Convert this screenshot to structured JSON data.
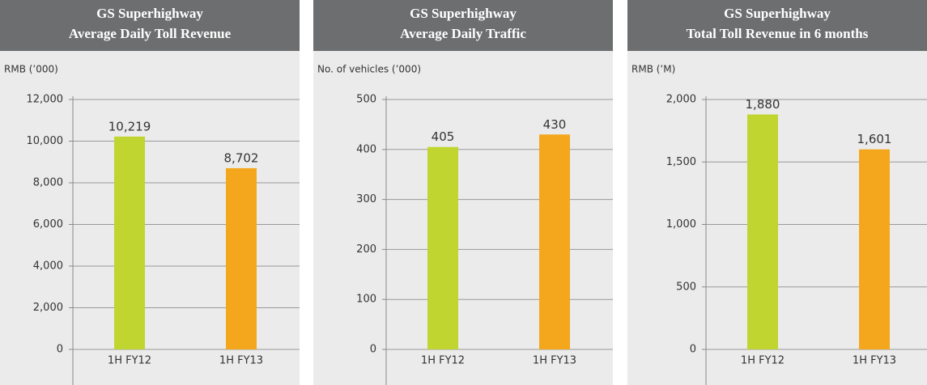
{
  "chart_data": [
    {
      "type": "bar",
      "title": "GS Superhighway",
      "subtitle": "Average Daily Toll Revenue",
      "y_label": "RMB (’000)",
      "categories": [
        "1H FY12",
        "1H FY13"
      ],
      "values": [
        10219,
        8702
      ],
      "value_labels": [
        "10,219",
        "8,702"
      ],
      "colors": [
        "#c0d530",
        "#f4a71d"
      ],
      "ylim": [
        0,
        12000
      ],
      "yticks": [
        0,
        {
          "value": 2000,
          "label": "2,000"
        },
        {
          "value": 4000,
          "label": "4,000"
        },
        {
          "value": 6000,
          "label": "6,000"
        },
        {
          "value": 8000,
          "label": "8,000"
        },
        {
          "value": 10000,
          "label": "10,000"
        },
        {
          "value": 12000,
          "label": "12,000"
        }
      ],
      "grid": true
    },
    {
      "type": "bar",
      "title": "GS Superhighway",
      "subtitle": "Average Daily Traffic",
      "y_label": "No. of vehicles (’000)",
      "categories": [
        "1H FY12",
        "1H FY13"
      ],
      "values": [
        405,
        430
      ],
      "colors": [
        "#c0d530",
        "#f4a71d"
      ],
      "ylim": [
        0,
        500
      ],
      "yticks": [
        0,
        100,
        200,
        300,
        400,
        500
      ],
      "grid": true
    },
    {
      "type": "bar",
      "title": "GS Superhighway",
      "subtitle": "Total Toll Revenue in 6 months",
      "y_label": "RMB (’M)",
      "categories": [
        "1H FY12",
        "1H FY13"
      ],
      "values": [
        1880,
        1601
      ],
      "value_labels": [
        "1,880",
        "1,601"
      ],
      "colors": [
        "#c0d530",
        "#f4a71d"
      ],
      "ylim": [
        0,
        2000
      ],
      "yticks": [
        0,
        500,
        {
          "value": 1000,
          "label": "1,000"
        },
        {
          "value": 1500,
          "label": "1,500"
        },
        {
          "value": 2000,
          "label": "2,000"
        }
      ],
      "grid": true
    }
  ]
}
